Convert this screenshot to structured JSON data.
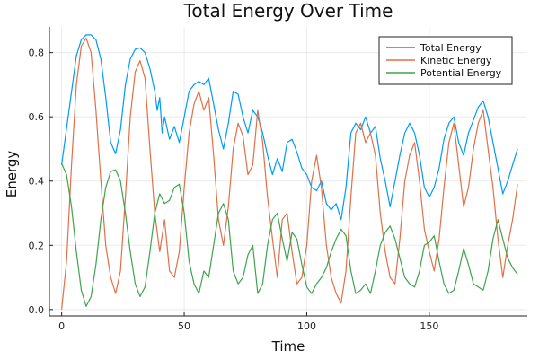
{
  "chart_data": {
    "type": "line",
    "title": "Total Energy Over Time",
    "xlabel": "Time",
    "ylabel": "Energy",
    "xlim": [
      -5,
      190
    ],
    "ylim": [
      -0.02,
      0.88
    ],
    "xticks": [
      0,
      50,
      100,
      150
    ],
    "yticks": [
      0.0,
      0.2,
      0.4,
      0.6,
      0.8
    ],
    "xtick_labels": [
      "0",
      "50",
      "100",
      "150"
    ],
    "ytick_labels": [
      "0.0",
      "0.2",
      "0.4",
      "0.6",
      "0.8"
    ],
    "grid": true,
    "legend_position": "top-right",
    "series": [
      {
        "name": "Total Energy",
        "color": "#009af9",
        "x": [
          0,
          3,
          6,
          8,
          10,
          12,
          14,
          16,
          18,
          20,
          22,
          24,
          26,
          28,
          30,
          32,
          34,
          36,
          38,
          39,
          40,
          41,
          42,
          44,
          46,
          48,
          50,
          52,
          54,
          56,
          58,
          60,
          62,
          64,
          66,
          68,
          70,
          72,
          74,
          76,
          78,
          80,
          82,
          84,
          86,
          88,
          90,
          92,
          94,
          96,
          98,
          100,
          102,
          104,
          106,
          108,
          110,
          112,
          114,
          116,
          118,
          120,
          122,
          124,
          126,
          128,
          130,
          132,
          134,
          136,
          138,
          140,
          142,
          144,
          146,
          148,
          150,
          152,
          154,
          156,
          158,
          160,
          162,
          164,
          166,
          168,
          170,
          172,
          174,
          176,
          178,
          180,
          182,
          184,
          186
        ],
        "y": [
          0.45,
          0.62,
          0.79,
          0.84,
          0.855,
          0.855,
          0.84,
          0.78,
          0.66,
          0.52,
          0.485,
          0.56,
          0.7,
          0.78,
          0.81,
          0.815,
          0.8,
          0.75,
          0.68,
          0.62,
          0.66,
          0.55,
          0.6,
          0.53,
          0.57,
          0.52,
          0.6,
          0.68,
          0.7,
          0.71,
          0.7,
          0.72,
          0.64,
          0.56,
          0.5,
          0.58,
          0.68,
          0.67,
          0.6,
          0.55,
          0.62,
          0.6,
          0.55,
          0.48,
          0.42,
          0.47,
          0.43,
          0.52,
          0.53,
          0.49,
          0.44,
          0.42,
          0.38,
          0.37,
          0.4,
          0.33,
          0.31,
          0.33,
          0.28,
          0.38,
          0.55,
          0.58,
          0.56,
          0.6,
          0.55,
          0.57,
          0.47,
          0.4,
          0.32,
          0.4,
          0.48,
          0.55,
          0.58,
          0.55,
          0.48,
          0.38,
          0.35,
          0.38,
          0.44,
          0.53,
          0.58,
          0.6,
          0.52,
          0.48,
          0.55,
          0.59,
          0.63,
          0.65,
          0.6,
          0.52,
          0.44,
          0.36,
          0.4,
          0.45,
          0.5
        ]
      },
      {
        "name": "Kinetic Energy",
        "color": "#e26f46",
        "x": [
          0,
          2,
          4,
          6,
          8,
          10,
          12,
          14,
          16,
          18,
          20,
          22,
          24,
          26,
          28,
          30,
          32,
          34,
          36,
          38,
          40,
          42,
          44,
          46,
          48,
          50,
          52,
          54,
          56,
          58,
          60,
          62,
          64,
          66,
          68,
          70,
          72,
          74,
          76,
          78,
          80,
          82,
          84,
          86,
          88,
          90,
          92,
          94,
          96,
          98,
          100,
          102,
          104,
          106,
          108,
          110,
          112,
          114,
          116,
          118,
          120,
          122,
          124,
          126,
          128,
          130,
          132,
          134,
          136,
          138,
          140,
          142,
          144,
          146,
          148,
          150,
          152,
          154,
          156,
          158,
          160,
          162,
          164,
          166,
          168,
          170,
          172,
          174,
          176,
          178,
          180,
          182,
          184,
          186
        ],
        "y": [
          0.0,
          0.15,
          0.45,
          0.7,
          0.82,
          0.845,
          0.8,
          0.62,
          0.4,
          0.2,
          0.1,
          0.05,
          0.12,
          0.35,
          0.6,
          0.74,
          0.775,
          0.72,
          0.5,
          0.3,
          0.18,
          0.28,
          0.12,
          0.1,
          0.18,
          0.38,
          0.55,
          0.64,
          0.68,
          0.62,
          0.66,
          0.48,
          0.28,
          0.2,
          0.32,
          0.5,
          0.58,
          0.54,
          0.42,
          0.45,
          0.62,
          0.52,
          0.35,
          0.22,
          0.1,
          0.28,
          0.3,
          0.18,
          0.08,
          0.1,
          0.2,
          0.4,
          0.48,
          0.38,
          0.2,
          0.1,
          0.05,
          0.02,
          0.12,
          0.35,
          0.55,
          0.58,
          0.52,
          0.55,
          0.48,
          0.3,
          0.18,
          0.1,
          0.08,
          0.22,
          0.4,
          0.48,
          0.52,
          0.4,
          0.25,
          0.18,
          0.12,
          0.22,
          0.38,
          0.52,
          0.58,
          0.45,
          0.32,
          0.38,
          0.5,
          0.58,
          0.62,
          0.5,
          0.38,
          0.22,
          0.1,
          0.2,
          0.28,
          0.39
        ]
      },
      {
        "name": "Potential Energy",
        "color": "#3da44d",
        "x": [
          0,
          2,
          4,
          6,
          8,
          10,
          12,
          14,
          16,
          18,
          20,
          22,
          24,
          26,
          28,
          30,
          32,
          34,
          36,
          38,
          40,
          42,
          44,
          46,
          48,
          50,
          52,
          54,
          56,
          58,
          60,
          62,
          64,
          66,
          68,
          70,
          72,
          74,
          76,
          78,
          80,
          82,
          84,
          86,
          88,
          90,
          92,
          94,
          96,
          98,
          100,
          102,
          104,
          106,
          108,
          110,
          112,
          114,
          116,
          118,
          120,
          122,
          124,
          126,
          128,
          130,
          132,
          134,
          136,
          138,
          140,
          142,
          144,
          146,
          148,
          150,
          152,
          154,
          156,
          158,
          160,
          162,
          164,
          166,
          168,
          170,
          172,
          174,
          176,
          178,
          180,
          182,
          184,
          186
        ],
        "y": [
          0.455,
          0.42,
          0.32,
          0.18,
          0.06,
          0.01,
          0.04,
          0.14,
          0.28,
          0.38,
          0.43,
          0.435,
          0.4,
          0.3,
          0.18,
          0.08,
          0.04,
          0.07,
          0.18,
          0.3,
          0.36,
          0.33,
          0.34,
          0.38,
          0.39,
          0.3,
          0.15,
          0.08,
          0.05,
          0.12,
          0.1,
          0.2,
          0.3,
          0.33,
          0.28,
          0.12,
          0.08,
          0.1,
          0.17,
          0.2,
          0.05,
          0.08,
          0.2,
          0.28,
          0.3,
          0.22,
          0.15,
          0.24,
          0.22,
          0.14,
          0.07,
          0.05,
          0.08,
          0.1,
          0.13,
          0.18,
          0.22,
          0.25,
          0.23,
          0.12,
          0.05,
          0.06,
          0.08,
          0.05,
          0.12,
          0.2,
          0.24,
          0.26,
          0.22,
          0.16,
          0.1,
          0.08,
          0.07,
          0.12,
          0.2,
          0.21,
          0.23,
          0.15,
          0.08,
          0.05,
          0.06,
          0.12,
          0.19,
          0.14,
          0.08,
          0.07,
          0.06,
          0.12,
          0.22,
          0.28,
          0.22,
          0.16,
          0.13,
          0.11
        ]
      }
    ]
  }
}
